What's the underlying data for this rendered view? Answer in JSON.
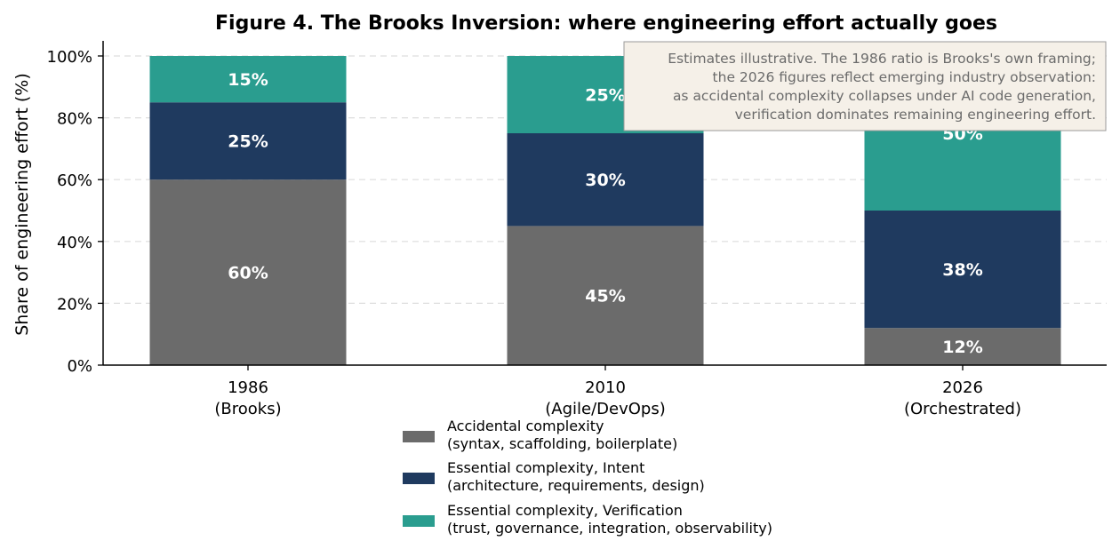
{
  "chart_data": {
    "type": "bar",
    "stacked": true,
    "title": "Figure 4. The Brooks Inversion: where engineering effort actually goes",
    "xlabel": "",
    "ylabel": "Share of engineering effort (%)",
    "ylim": [
      0,
      100
    ],
    "yticks": [
      "0%",
      "20%",
      "40%",
      "60%",
      "80%",
      "100%"
    ],
    "categories": [
      [
        "1986",
        "(Brooks)"
      ],
      [
        "2010",
        "(Agile/DevOps)"
      ],
      [
        "2026",
        "(Orchestrated)"
      ]
    ],
    "series": [
      {
        "name": [
          "Accidental complexity",
          "(syntax, scaffolding, boilerplate)"
        ],
        "values": [
          60,
          45,
          12
        ],
        "labels": [
          "60%",
          "45%",
          "12%"
        ],
        "color": "#6b6b6b"
      },
      {
        "name": [
          "Essential complexity, Intent",
          "(architecture, requirements, design)"
        ],
        "values": [
          25,
          30,
          38
        ],
        "labels": [
          "25%",
          "30%",
          "38%"
        ],
        "color": "#1f3a5f"
      },
      {
        "name": [
          "Essential complexity, Verification",
          "(trust, governance, integration, observability)"
        ],
        "values": [
          15,
          25,
          50
        ],
        "labels": [
          "15%",
          "25%",
          "50%"
        ],
        "color": "#2a9d8f"
      }
    ],
    "grid": true,
    "legend_position": "bottom-center",
    "annotation": [
      "Estimates illustrative. The 1986 ratio is Brooks's own framing;",
      "the 2026 figures reflect emerging industry observation:",
      "as accidental complexity collapses under AI code generation,",
      "verification dominates remaining engineering effort."
    ]
  }
}
